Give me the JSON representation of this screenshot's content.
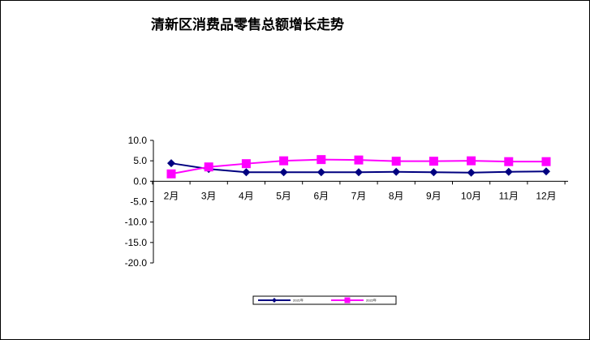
{
  "chart_data": {
    "type": "line",
    "title": "清新区消费品零售总额增长走势",
    "xlabel": "",
    "ylabel": "",
    "categories": [
      "2月",
      "3月",
      "4月",
      "5月",
      "6月",
      "7月",
      "8月",
      "9月",
      "10月",
      "11月",
      "12月"
    ],
    "ylim": [
      -20.0,
      10.0
    ],
    "yticks": [
      "10.0",
      "5.0",
      "0.0",
      "-5.0",
      "-10.0",
      "-15.0",
      "-20.0"
    ],
    "grid": false,
    "legend_position": "bottom",
    "series": [
      {
        "name": "2021年",
        "color": "#000080",
        "marker": "diamond",
        "values": [
          4.4,
          3.0,
          2.2,
          2.2,
          2.2,
          2.2,
          2.3,
          2.2,
          2.1,
          2.3,
          2.4
        ]
      },
      {
        "name": "2022年",
        "color": "#FF00FF",
        "marker": "square",
        "values": [
          1.8,
          3.5,
          4.3,
          5.0,
          5.3,
          5.2,
          4.9,
          4.9,
          5.0,
          4.8,
          4.8
        ]
      }
    ]
  }
}
